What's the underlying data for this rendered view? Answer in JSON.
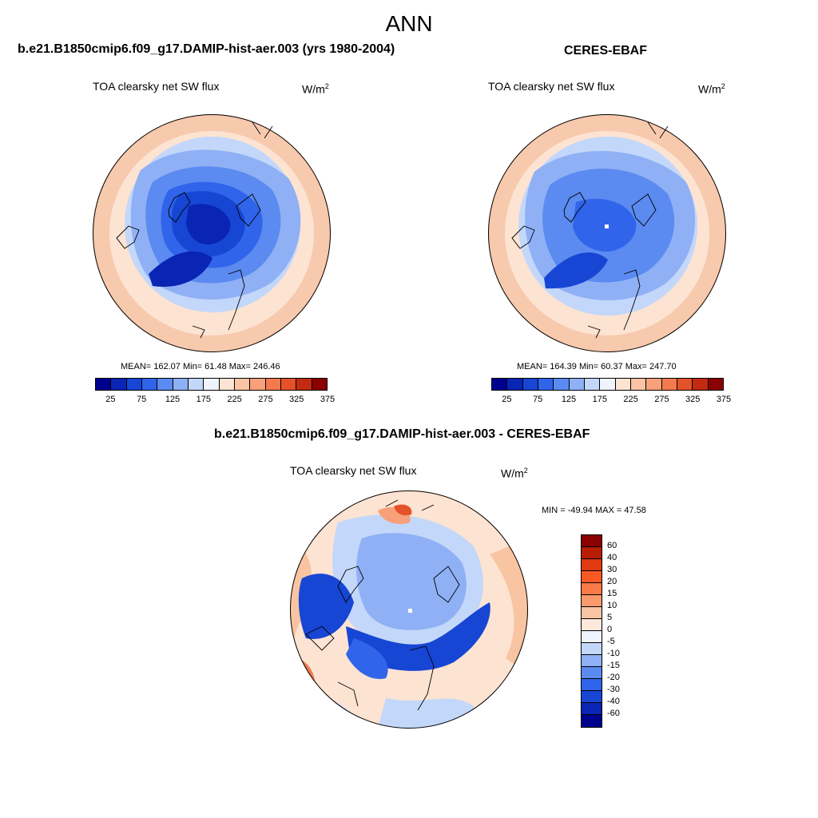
{
  "figure_title": "ANN",
  "panels": [
    {
      "title": "b.e21.B1850cmip6.f09_g17.DAMIP-hist-aer.003 (yrs 1980-2004)",
      "field": "TOA clearsky net SW flux",
      "units": "W/m",
      "units_exp": "2",
      "stats_text": "MEAN= 162.07  Min=  61.48  Max= 246.46",
      "mean": 162.07,
      "min": 61.48,
      "max": 246.46
    },
    {
      "title": "CERES-EBAF",
      "field": "TOA clearsky net SW flux",
      "units": "W/m",
      "units_exp": "2",
      "stats_text": "MEAN= 164.39  Min=  60.37  Max= 247.70",
      "mean": 164.39,
      "min": 60.37,
      "max": 247.7
    },
    {
      "title": "b.e21.B1850cmip6.f09_g17.DAMIP-hist-aer.003 - CERES-EBAF",
      "field": "TOA clearsky net SW flux",
      "units": "W/m",
      "units_exp": "2",
      "stats_text": "MIN = -49.94 MAX =  47.58",
      "min": -49.94,
      "max": 47.58
    }
  ],
  "colorbar_abs": {
    "ticks": [
      "25",
      "75",
      "125",
      "175",
      "225",
      "275",
      "325",
      "375"
    ],
    "colors": [
      "#00008f",
      "#0a24b4",
      "#1746d4",
      "#3064ea",
      "#5b8af0",
      "#8fb0f5",
      "#c3d7fa",
      "#eef3fd",
      "#fde3d2",
      "#fbc2a4",
      "#f7a07a",
      "#f27a4e",
      "#e4522a",
      "#c22a12",
      "#8b0000"
    ]
  },
  "colorbar_diff": {
    "ticks": [
      "60",
      "40",
      "30",
      "20",
      "15",
      "10",
      "5",
      "0",
      "-5",
      "-10",
      "-15",
      "-20",
      "-30",
      "-40",
      "-60"
    ],
    "colors": [
      "#8b0000",
      "#b81d05",
      "#e13a12",
      "#fb5a25",
      "#fb7a48",
      "#fa9a6c",
      "#f9c4a2",
      "#fde9dc",
      "#eef3fd",
      "#c3d7fa",
      "#8fb0f5",
      "#5b8af0",
      "#3064ea",
      "#1746d4",
      "#0a24b4",
      "#00008f"
    ]
  }
}
